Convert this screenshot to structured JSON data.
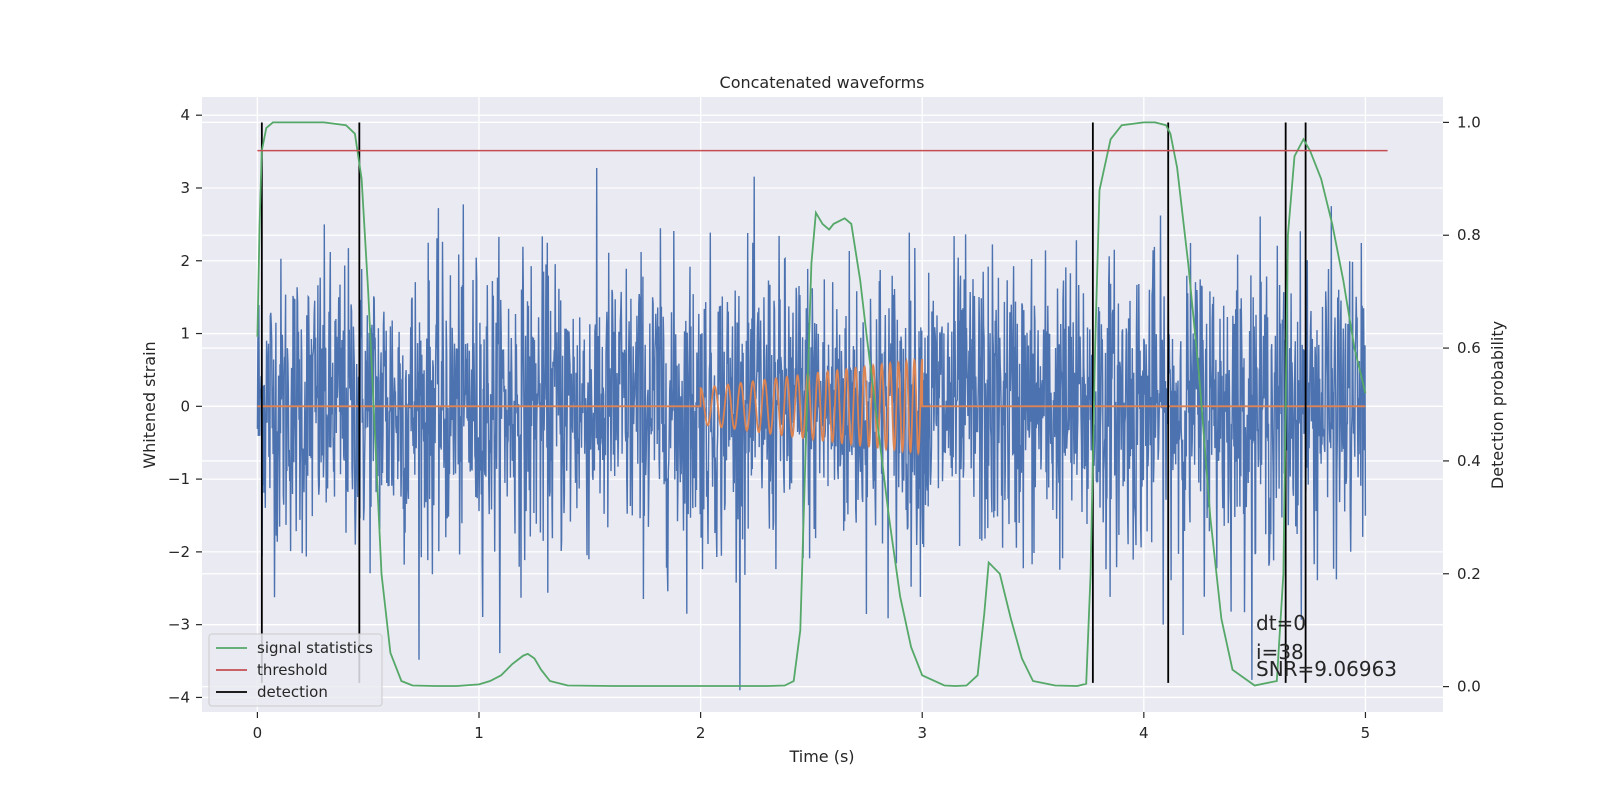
{
  "chart_data": {
    "type": "line",
    "title": "Concatenated waveforms",
    "xlabel": "Time (s)",
    "ylabel": "Whitened strain",
    "y2label": "Detection probability",
    "xlim": [
      -0.25,
      5.35
    ],
    "ylim": [
      -4.2,
      4.25
    ],
    "y2lim": [
      -0.045,
      1.045
    ],
    "xticks": [
      0,
      1,
      2,
      3,
      4,
      5
    ],
    "yticks": [
      -4,
      -3,
      -2,
      -1,
      0,
      1,
      2,
      3,
      4
    ],
    "y2ticks": [
      0.0,
      0.2,
      0.4,
      0.6,
      0.8,
      1.0
    ],
    "xtick_labels": [
      "0",
      "1",
      "2",
      "3",
      "4",
      "5"
    ],
    "ytick_labels": [
      "−4",
      "−3",
      "−2",
      "−1",
      "0",
      "1",
      "2",
      "3",
      "4"
    ],
    "y2tick_labels": [
      "0.0",
      "0.2",
      "0.4",
      "0.6",
      "0.8",
      "1.0"
    ],
    "grid": true,
    "legend_position": "lower-left",
    "series": [
      {
        "name": "",
        "axis": "left",
        "color": "#4c72b0",
        "kind": "noise",
        "x_range": [
          0,
          5
        ],
        "typical_amplitude": 1.0,
        "peak_amplitude": 3.9
      },
      {
        "name": "",
        "axis": "left",
        "color": "#dd8452",
        "kind": "chirp",
        "x_start": 2.0,
        "x_end": 3.0,
        "amplitude_start": 0.25,
        "amplitude_end": 0.65,
        "cycles": 22
      },
      {
        "name": "signal statistics",
        "axis": "right",
        "color": "#55a868",
        "x": [
          0.0,
          0.01,
          0.02,
          0.04,
          0.07,
          0.1,
          0.2,
          0.3,
          0.4,
          0.44,
          0.47,
          0.5,
          0.53,
          0.56,
          0.6,
          0.65,
          0.7,
          0.8,
          0.9,
          1.0,
          1.05,
          1.1,
          1.15,
          1.2,
          1.22,
          1.25,
          1.28,
          1.32,
          1.4,
          1.6,
          1.8,
          2.0,
          2.2,
          2.3,
          2.38,
          2.42,
          2.45,
          2.48,
          2.5,
          2.52,
          2.55,
          2.58,
          2.6,
          2.65,
          2.68,
          2.72,
          2.75,
          2.8,
          2.85,
          2.9,
          2.95,
          3.0,
          3.1,
          3.15,
          3.2,
          3.25,
          3.28,
          3.3,
          3.35,
          3.4,
          3.45,
          3.5,
          3.6,
          3.7,
          3.74,
          3.76,
          3.78,
          3.8,
          3.85,
          3.9,
          4.0,
          4.05,
          4.1,
          4.12,
          4.15,
          4.2,
          4.25,
          4.3,
          4.35,
          4.4,
          4.5,
          4.6,
          4.63,
          4.65,
          4.68,
          4.72,
          4.75,
          4.8,
          4.85,
          4.9,
          4.95,
          5.0
        ],
        "y": [
          0.62,
          0.82,
          0.95,
          0.99,
          1.0,
          1.0,
          1.0,
          1.0,
          0.995,
          0.98,
          0.9,
          0.7,
          0.45,
          0.2,
          0.06,
          0.01,
          0.002,
          0.001,
          0.001,
          0.004,
          0.01,
          0.02,
          0.04,
          0.055,
          0.058,
          0.05,
          0.03,
          0.01,
          0.002,
          0.001,
          0.001,
          0.001,
          0.001,
          0.001,
          0.002,
          0.01,
          0.1,
          0.5,
          0.75,
          0.84,
          0.82,
          0.81,
          0.82,
          0.83,
          0.82,
          0.72,
          0.62,
          0.46,
          0.3,
          0.16,
          0.07,
          0.02,
          0.002,
          0.001,
          0.002,
          0.02,
          0.13,
          0.22,
          0.2,
          0.12,
          0.05,
          0.01,
          0.002,
          0.001,
          0.005,
          0.2,
          0.6,
          0.88,
          0.97,
          0.995,
          1.0,
          1.0,
          0.995,
          0.98,
          0.92,
          0.75,
          0.55,
          0.3,
          0.12,
          0.03,
          0.002,
          0.01,
          0.2,
          0.8,
          0.94,
          0.97,
          0.95,
          0.9,
          0.82,
          0.72,
          0.6,
          0.52
        ]
      },
      {
        "name": "threshold",
        "axis": "right",
        "color": "#c44e52",
        "x": [
          0.0,
          5.1
        ],
        "y": [
          0.95,
          0.95
        ]
      }
    ],
    "detections": {
      "name": "detection",
      "color": "#000000",
      "x": [
        0.02,
        0.46,
        3.77,
        4.11,
        4.64,
        4.73
      ],
      "y_range": [
        -3.8,
        3.9
      ]
    },
    "annotations": [
      "dt=0",
      "i=38",
      "SNR=9.06963"
    ]
  }
}
